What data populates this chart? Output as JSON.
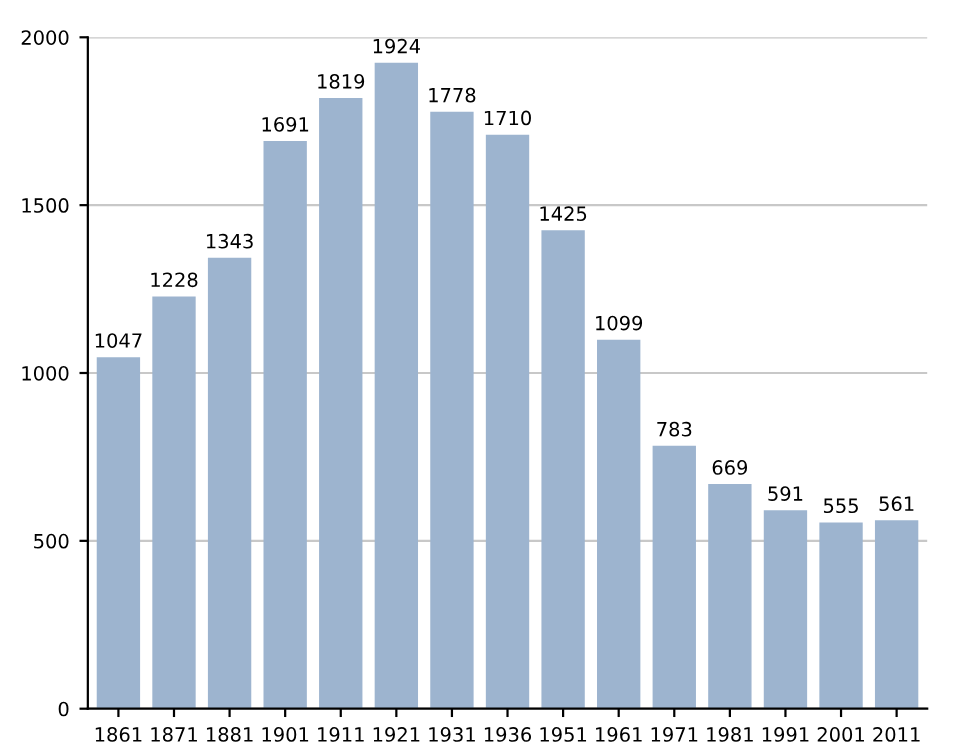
{
  "chart_data": {
    "type": "bar",
    "categories": [
      "1861",
      "1871",
      "1881",
      "1901",
      "1911",
      "1921",
      "1931",
      "1936",
      "1951",
      "1961",
      "1971",
      "1981",
      "1991",
      "2001",
      "2011"
    ],
    "values": [
      1047,
      1228,
      1343,
      1691,
      1819,
      1924,
      1778,
      1710,
      1425,
      1099,
      783,
      669,
      591,
      555,
      561
    ],
    "color": "#9db4cf",
    "ylim": [
      0,
      2000
    ],
    "yticks": [
      0,
      500,
      1000,
      1500,
      2000
    ],
    "grid": "y",
    "data_labels": true
  }
}
